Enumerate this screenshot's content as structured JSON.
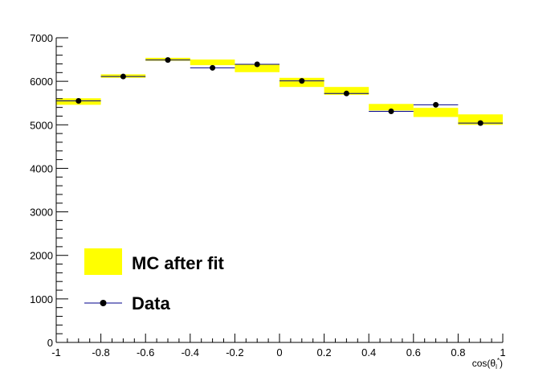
{
  "chart_data": {
    "type": "histogram",
    "title": "",
    "xlabel": "cos(θ",
    "xlabel_sub": "l",
    "xlabel_sup": "*",
    "xlabel_close": ")",
    "ylabel": "",
    "xlim": [
      -1,
      1
    ],
    "ylim": [
      0,
      7000
    ],
    "grid": false,
    "legend_position": "bottom-left",
    "x_ticks": [
      "-1",
      "-0.8",
      "-0.6",
      "-0.4",
      "-0.2",
      "0",
      "0.2",
      "0.4",
      "0.6",
      "0.8",
      "1"
    ],
    "y_ticks": [
      "0",
      "1000",
      "2000",
      "3000",
      "4000",
      "5000",
      "6000",
      "7000"
    ],
    "bins": [
      {
        "low": -1.0,
        "high": -0.8
      },
      {
        "low": -0.8,
        "high": -0.6
      },
      {
        "low": -0.6,
        "high": -0.4
      },
      {
        "low": -0.4,
        "high": -0.2
      },
      {
        "low": -0.2,
        "high": 0.0
      },
      {
        "low": 0.0,
        "high": 0.2
      },
      {
        "low": 0.2,
        "high": 0.4
      },
      {
        "low": 0.4,
        "high": 0.6
      },
      {
        "low": 0.6,
        "high": 0.8
      },
      {
        "low": 0.8,
        "high": 1.0
      }
    ],
    "series": [
      {
        "name": "MC after fit",
        "kind": "band",
        "color": "#ffff00",
        "lower": [
          5460,
          6080,
          6470,
          6370,
          6210,
          5870,
          5690,
          5330,
          5180,
          5000
        ],
        "upper": [
          5610,
          6160,
          6540,
          6500,
          6400,
          6080,
          5870,
          5480,
          5390,
          5240
        ]
      },
      {
        "name": "Data",
        "kind": "points",
        "color": "#000000",
        "line_color": "#00008b",
        "x": [
          -0.9,
          -0.7,
          -0.5,
          -0.3,
          -0.1,
          0.1,
          0.3,
          0.5,
          0.7,
          0.9
        ],
        "values": [
          5550,
          6110,
          6490,
          6310,
          6390,
          6010,
          5720,
          5310,
          5460,
          5040
        ]
      }
    ]
  }
}
